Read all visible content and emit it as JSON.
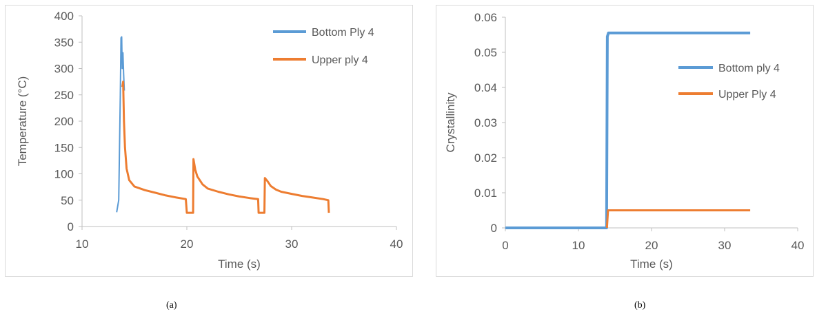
{
  "colors": {
    "series_blue": "#5b9bd5",
    "series_orange": "#ed7d31",
    "axis": "#bfbfbf",
    "text": "#595959"
  },
  "captions": {
    "a": "(a)",
    "b": "(b)"
  },
  "chart_data": [
    {
      "type": "line",
      "id": "a",
      "title": "",
      "xlabel": "Time (s)",
      "ylabel": "Temperature (°C)",
      "xlim": [
        10,
        40
      ],
      "ylim": [
        0,
        400
      ],
      "xticks": [
        10,
        20,
        30,
        40
      ],
      "yticks": [
        0,
        50,
        100,
        150,
        200,
        250,
        300,
        350,
        400
      ],
      "legend_position": "top-right",
      "series": [
        {
          "name": "Bottom Ply 4",
          "color": "#5b9bd5",
          "width": 2,
          "points": [
            [
              13.3,
              27
            ],
            [
              13.5,
              50
            ],
            [
              13.65,
              250
            ],
            [
              13.72,
              358
            ],
            [
              13.78,
              360
            ],
            [
              13.83,
              300
            ],
            [
              13.9,
              330
            ],
            [
              13.97,
              290
            ],
            [
              14.03,
              258
            ]
          ]
        },
        {
          "name": "Upper ply 4",
          "color": "#ed7d31",
          "width": 3,
          "points": [
            [
              13.85,
              265
            ],
            [
              13.92,
              275
            ],
            [
              14.0,
              200
            ],
            [
              14.1,
              150
            ],
            [
              14.25,
              110
            ],
            [
              14.5,
              88
            ],
            [
              15.0,
              76
            ],
            [
              16.0,
              69
            ],
            [
              17.0,
              64
            ],
            [
              18.0,
              59
            ],
            [
              19.0,
              55
            ],
            [
              19.9,
              52
            ],
            [
              20.0,
              26
            ],
            [
              20.6,
              26
            ],
            [
              20.63,
              128
            ],
            [
              20.8,
              108
            ],
            [
              21.0,
              95
            ],
            [
              21.5,
              80
            ],
            [
              22.0,
              72
            ],
            [
              23.0,
              66
            ],
            [
              24.0,
              61
            ],
            [
              25.0,
              57
            ],
            [
              26.0,
              54
            ],
            [
              26.8,
              52
            ],
            [
              26.85,
              26
            ],
            [
              27.4,
              26
            ],
            [
              27.45,
              92
            ],
            [
              27.7,
              86
            ],
            [
              28.0,
              77
            ],
            [
              28.5,
              70
            ],
            [
              29.0,
              66
            ],
            [
              30.0,
              62
            ],
            [
              31.0,
              58
            ],
            [
              32.0,
              55
            ],
            [
              33.0,
              52
            ],
            [
              33.5,
              50
            ],
            [
              33.55,
              26
            ]
          ]
        }
      ]
    },
    {
      "type": "line",
      "id": "b",
      "title": "",
      "xlabel": "Time (s)",
      "ylabel": "Crystallinity",
      "xlim": [
        0,
        40
      ],
      "ylim": [
        0,
        0.06
      ],
      "xticks": [
        0,
        10,
        20,
        30,
        40
      ],
      "yticks": [
        0,
        0.01,
        0.02,
        0.03,
        0.04,
        0.05,
        0.06
      ],
      "ytick_labels": [
        "0",
        "0.01",
        "0.02",
        "0.03",
        "0.04",
        "0.05",
        "0.06"
      ],
      "legend_position": "right",
      "series": [
        {
          "name": "Bottom ply 4",
          "color": "#5b9bd5",
          "width": 4,
          "points": [
            [
              0,
              0
            ],
            [
              13.85,
              0
            ],
            [
              13.95,
              0.0545
            ],
            [
              14.1,
              0.0555
            ],
            [
              33.5,
              0.0555
            ]
          ]
        },
        {
          "name": "Upper Ply 4",
          "color": "#ed7d31",
          "width": 3,
          "points": [
            [
              13.9,
              0
            ],
            [
              14.05,
              0.005
            ],
            [
              33.5,
              0.005
            ]
          ]
        }
      ]
    }
  ]
}
